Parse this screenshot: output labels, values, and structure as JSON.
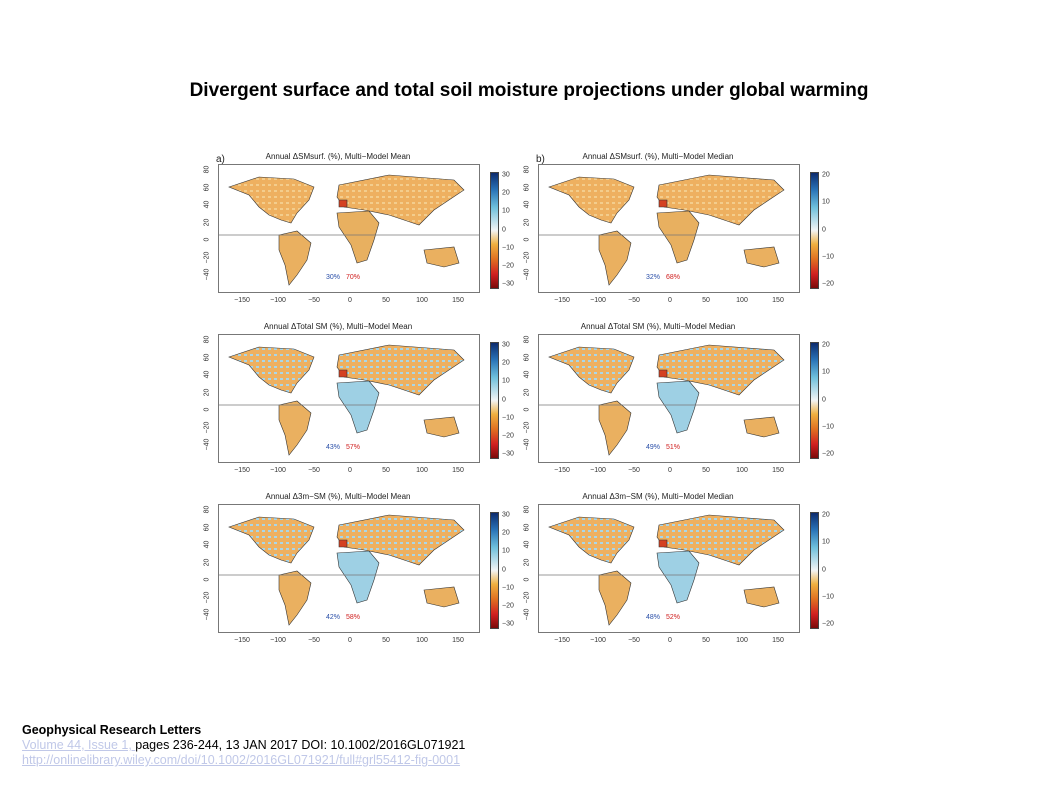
{
  "title": "Divergent surface and total soil moisture projections under global warming",
  "panels": [
    {
      "label": "a)",
      "title": "Annual ΔSMsurf. (%), Multi−Model Mean",
      "cbar": [
        "30",
        "20",
        "10",
        "0",
        "−10",
        "−20",
        "−30"
      ],
      "pct_wet": "30%",
      "pct_dry": "70%"
    },
    {
      "label": "b)",
      "title": "Annual ΔSMsurf. (%), Multi−Model Median",
      "cbar": [
        "20",
        "10",
        "0",
        "−10",
        "−20"
      ],
      "pct_wet": "32%",
      "pct_dry": "68%"
    },
    {
      "label": "",
      "title": "Annual ΔTotal SM (%), Multi−Model Mean",
      "cbar": [
        "30",
        "20",
        "10",
        "0",
        "−10",
        "−20",
        "−30"
      ],
      "pct_wet": "43%",
      "pct_dry": "57%"
    },
    {
      "label": "",
      "title": "Annual ΔTotal SM (%), Multi−Model Median",
      "cbar": [
        "20",
        "10",
        "0",
        "−10",
        "−20"
      ],
      "pct_wet": "49%",
      "pct_dry": "51%"
    },
    {
      "label": "",
      "title": "Annual Δ3m−SM (%), Multi−Model Mean",
      "cbar": [
        "30",
        "20",
        "10",
        "0",
        "−10",
        "−20",
        "−30"
      ],
      "pct_wet": "42%",
      "pct_dry": "58%"
    },
    {
      "label": "",
      "title": "Annual Δ3m−SM (%), Multi−Model Median",
      "cbar": [
        "20",
        "10",
        "0",
        "−10",
        "−20"
      ],
      "pct_wet": "48%",
      "pct_dry": "52%"
    }
  ],
  "yticks": [
    "80",
    "60",
    "40",
    "20",
    "0",
    "−20",
    "−40"
  ],
  "xticks": [
    "−150",
    "−100",
    "−50",
    "0",
    "50",
    "100",
    "150"
  ],
  "footer": {
    "journal": "Geophysical Research Letters",
    "volume_link": "Volume 44, Issue 1, ",
    "citation": "pages 236-244, 13 JAN 2017 DOI: 10.1002/2016GL071921",
    "url": "http://onlinelibrary.wiley.com/doi/10.1002/2016GL071921/full#grl55412-fig-0001"
  }
}
